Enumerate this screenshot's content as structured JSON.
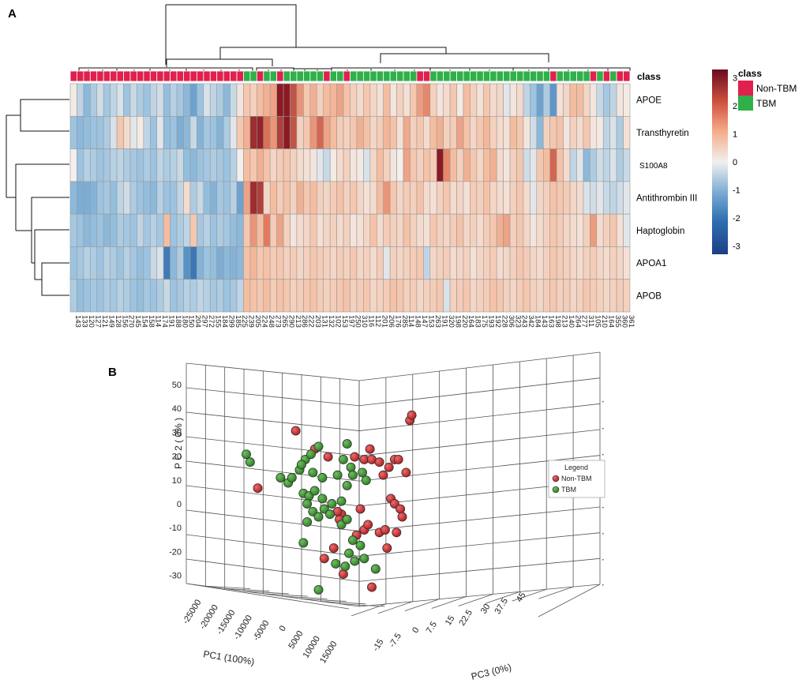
{
  "panels": {
    "a": "A",
    "b": "B"
  },
  "colors": {
    "non_tbm": "#e0204e",
    "tbm": "#2fb04a",
    "scale": [
      "#2e5fa3",
      "#6fa6d0",
      "#c7dcea",
      "#f4eeea",
      "#f5c2a6",
      "#e58468",
      "#8b1a23"
    ],
    "cell_border": "#9a9a9a",
    "pca_red": "#d8353a",
    "pca_green": "#3d9a34",
    "grid": "#555555"
  },
  "chart_data": [
    {
      "type": "heatmap",
      "title": "",
      "annotation_label": "class",
      "legend": {
        "title": "class",
        "entries": [
          "Non-TBM",
          "TBM"
        ],
        "colorbar_ticks": [
          3,
          2,
          1,
          0,
          -1,
          -2,
          -3
        ],
        "colorbar_range": [
          -3.3,
          3.3
        ]
      },
      "rows": [
        "APOE",
        "Transthyretin",
        "S100A8",
        "Antithrombin III",
        "Haptoglobin",
        "APOA1",
        "APOB"
      ],
      "columns": [
        "143",
        "133",
        "120",
        "127",
        "121",
        "149",
        "128",
        "156",
        "270",
        "145",
        "154",
        "158",
        "114",
        "174",
        "191",
        "188",
        "180",
        "150",
        "204",
        "297",
        "272",
        "155",
        "184",
        "299",
        "185",
        "225",
        "239",
        "205",
        "224",
        "248",
        "273",
        "265",
        "290",
        "213",
        "286",
        "222",
        "203",
        "131",
        "132",
        "102",
        "153",
        "197",
        "250",
        "310",
        "116",
        "112",
        "201",
        "206",
        "176",
        "285",
        "114",
        "148",
        "147",
        "153",
        "263",
        "191",
        "320",
        "198",
        "220",
        "164",
        "183",
        "175",
        "193",
        "192",
        "228",
        "306",
        "323",
        "243",
        "342",
        "184",
        "143",
        "163",
        "198",
        "213",
        "140",
        "264",
        "277",
        "311",
        "105",
        "210",
        "164",
        "355",
        "360",
        "361"
      ],
      "column_class": [
        "N",
        "N",
        "N",
        "N",
        "N",
        "N",
        "N",
        "N",
        "N",
        "N",
        "N",
        "N",
        "N",
        "N",
        "N",
        "N",
        "N",
        "N",
        "N",
        "N",
        "N",
        "N",
        "N",
        "N",
        "N",
        "N",
        "T",
        "T",
        "N",
        "T",
        "T",
        "N",
        "T",
        "T",
        "T",
        "T",
        "T",
        "T",
        "N",
        "T",
        "T",
        "N",
        "T",
        "T",
        "T",
        "T",
        "T",
        "T",
        "T",
        "T",
        "T",
        "T",
        "N",
        "N",
        "T",
        "T",
        "T",
        "T",
        "T",
        "T",
        "T",
        "T",
        "T",
        "T",
        "T",
        "T",
        "T",
        "T",
        "T",
        "T",
        "T",
        "T",
        "N",
        "T",
        "T",
        "T",
        "T",
        "T",
        "N",
        "T",
        "N",
        "T",
        "N",
        "N"
      ],
      "values": [
        [
          0.1,
          -0.6,
          -1.2,
          -0.8,
          -0.4,
          -0.9,
          -0.6,
          -0.3,
          -1.0,
          -0.5,
          -0.8,
          -1.0,
          -0.6,
          -0.4,
          -1.1,
          -0.7,
          -0.9,
          -1.2,
          -1.6,
          -1.0,
          -0.3,
          -0.6,
          -0.8,
          -1.2,
          -0.5,
          0.2,
          0.8,
          0.6,
          1.0,
          1.2,
          1.4,
          3.0,
          3.2,
          2.4,
          1.6,
          0.8,
          1.2,
          0.6,
          1.0,
          1.1,
          1.4,
          0.9,
          0.6,
          0.4,
          0.8,
          0.5,
          0.3,
          1.0,
          0.2,
          0.6,
          0.3,
          0.8,
          1.5,
          1.8,
          0.6,
          0.2,
          0.4,
          0.8,
          0.1,
          1.0,
          0.6,
          0.3,
          0.8,
          0.4,
          0.5,
          -0.2,
          0.2,
          0.4,
          -0.6,
          -1.0,
          -1.6,
          -0.8,
          -1.8,
          0.3,
          0.5,
          1.0,
          1.0,
          0.5,
          0.2,
          -0.5,
          -0.9,
          -0.6,
          0.2,
          0.1
        ],
        [
          -1.0,
          -1.2,
          -1.1,
          -1.0,
          -1.0,
          -0.8,
          -0.3,
          0.8,
          0.4,
          -0.2,
          0.1,
          -0.6,
          -1.0,
          -0.2,
          -1.1,
          -1.0,
          -1.4,
          -1.2,
          -0.5,
          -1.3,
          -0.9,
          -1.0,
          -1.3,
          -0.8,
          -0.2,
          0.8,
          1.2,
          2.8,
          2.9,
          2.1,
          1.6,
          2.6,
          3.0,
          2.4,
          0.6,
          0.8,
          1.6,
          2.2,
          1.4,
          1.0,
          0.7,
          0.6,
          0.8,
          1.2,
          0.9,
          0.5,
          0.7,
          1.1,
          0.9,
          0.3,
          1.3,
          0.6,
          0.8,
          0.4,
          1.0,
          1.2,
          0.6,
          0.7,
          1.4,
          0.9,
          0.5,
          0.8,
          1.1,
          0.6,
          0.4,
          0.3,
          1.0,
          0.8,
          0.2,
          -0.4,
          -1.2,
          0.6,
          0.8,
          0.9,
          0.2,
          0.6,
          0.4,
          0.8,
          0.2,
          0.1,
          -0.6,
          -0.3,
          -0.8,
          0.3
        ],
        [
          0.0,
          -1.0,
          -0.7,
          -0.8,
          -1.0,
          -0.9,
          -0.7,
          -0.6,
          -0.8,
          -0.9,
          -1.0,
          -0.8,
          -1.0,
          -0.6,
          -0.8,
          -0.7,
          -0.5,
          -1.1,
          -1.2,
          -1.0,
          -0.9,
          -0.8,
          -0.9,
          -1.0,
          -0.7,
          0.0,
          1.0,
          0.8,
          1.2,
          0.9,
          0.5,
          0.7,
          0.8,
          0.6,
          0.4,
          0.3,
          0.2,
          -0.2,
          -0.5,
          0.1,
          0.4,
          0.6,
          0.2,
          0.1,
          -0.3,
          0.5,
          1.0,
          0.6,
          0.2,
          0.0,
          1.4,
          0.8,
          0.6,
          0.9,
          0.7,
          3.0,
          1.8,
          1.0,
          0.6,
          1.2,
          0.8,
          0.5,
          1.0,
          1.2,
          0.4,
          0.2,
          0.6,
          0.8,
          -0.4,
          -0.2,
          0.8,
          1.0,
          2.2,
          0.9,
          0.4,
          -0.6,
          -0.2,
          -1.2,
          -0.8,
          -0.4,
          -0.6,
          -0.3,
          -0.8,
          -0.5
        ],
        [
          -1.2,
          -1.4,
          -1.4,
          -1.3,
          -1.0,
          -0.9,
          -1.1,
          -0.6,
          -0.4,
          -0.8,
          -1.0,
          -1.1,
          -1.2,
          -0.7,
          -1.0,
          -1.0,
          -0.6,
          0.4,
          -0.8,
          -0.5,
          -1.1,
          -1.3,
          -0.9,
          -1.0,
          -0.7,
          -1.6,
          1.4,
          2.8,
          2.6,
          0.5,
          1.0,
          0.7,
          0.9,
          0.6,
          1.2,
          0.8,
          1.0,
          0.6,
          0.5,
          0.7,
          0.9,
          0.6,
          0.8,
          0.5,
          0.3,
          0.4,
          1.0,
          1.6,
          0.8,
          0.5,
          0.7,
          0.6,
          0.9,
          0.4,
          0.3,
          0.6,
          0.8,
          0.4,
          0.5,
          0.3,
          0.7,
          0.6,
          0.9,
          0.5,
          0.4,
          0.3,
          0.6,
          0.8,
          0.4,
          -0.2,
          0.5,
          0.6,
          0.9,
          0.8,
          0.7,
          0.5,
          0.4,
          -0.3,
          -0.4,
          -0.2,
          -0.5,
          -0.6,
          -0.4,
          -0.2
        ],
        [
          -0.9,
          -1.0,
          -1.2,
          -1.1,
          -1.0,
          -1.2,
          -1.1,
          -0.8,
          -0.9,
          -1.0,
          -0.6,
          -0.9,
          -0.7,
          -0.9,
          1.0,
          -1.0,
          -0.8,
          -0.6,
          0.8,
          -0.9,
          -0.7,
          -1.0,
          -0.8,
          -0.9,
          -1.1,
          -1.2,
          0.8,
          1.6,
          1.0,
          2.0,
          0.7,
          1.4,
          0.6,
          0.2,
          0.4,
          0.5,
          0.8,
          0.3,
          0.5,
          0.6,
          0.4,
          0.6,
          0.2,
          0.3,
          0.5,
          0.9,
          0.4,
          0.7,
          0.6,
          0.5,
          0.9,
          0.6,
          0.4,
          0.3,
          0.8,
          0.6,
          0.5,
          0.7,
          0.9,
          0.5,
          0.6,
          0.4,
          0.7,
          0.8,
          1.2,
          1.4,
          0.6,
          0.8,
          0.5,
          0.2,
          0.4,
          0.6,
          0.8,
          0.7,
          0.5,
          0.4,
          0.3,
          0.6,
          1.5,
          0.4,
          0.6,
          0.8,
          0.3,
          -0.2
        ],
        [
          -1.0,
          -0.9,
          -0.7,
          -0.8,
          -1.0,
          -0.7,
          -0.8,
          -1.0,
          -0.7,
          -0.9,
          -1.1,
          -1.0,
          -0.5,
          -0.3,
          -2.4,
          -1.2,
          -0.8,
          -1.9,
          -2.5,
          -1.3,
          -1.0,
          -1.1,
          -1.4,
          -1.2,
          -1.3,
          -1.2,
          0.9,
          1.1,
          0.8,
          0.9,
          0.7,
          0.8,
          0.6,
          0.7,
          0.5,
          0.6,
          0.8,
          0.7,
          0.6,
          0.5,
          0.7,
          0.6,
          0.8,
          0.5,
          0.6,
          0.4,
          0.7,
          -0.2,
          0.6,
          0.5,
          0.6,
          0.7,
          0.8,
          -0.6,
          0.5,
          0.6,
          0.7,
          0.4,
          0.5,
          0.6,
          0.3,
          0.5,
          0.6,
          0.7,
          0.4,
          0.5,
          0.6,
          0.8,
          0.7,
          0.5,
          0.4,
          0.6,
          0.8,
          0.7,
          0.6,
          0.5,
          0.4,
          0.6,
          0.7,
          0.5,
          0.4,
          0.6,
          0.5,
          0.3
        ],
        [
          -0.8,
          -1.1,
          -1.0,
          -0.9,
          -1.0,
          -0.8,
          -0.9,
          -0.7,
          -0.8,
          -1.0,
          -1.1,
          -0.9,
          -1.0,
          -0.8,
          -0.5,
          -1.0,
          -0.9,
          -0.7,
          -0.8,
          -0.6,
          -0.7,
          -0.9,
          -0.8,
          -1.0,
          -0.9,
          -0.6,
          1.0,
          0.9,
          0.8,
          1.0,
          0.7,
          0.9,
          0.8,
          0.6,
          0.7,
          0.8,
          0.9,
          0.7,
          0.6,
          0.7,
          0.8,
          0.9,
          0.6,
          0.7,
          0.8,
          0.5,
          0.6,
          0.7,
          0.9,
          0.8,
          0.6,
          0.7,
          0.5,
          0.6,
          0.7,
          0.8,
          -0.3,
          0.6,
          0.7,
          0.8,
          0.5,
          0.6,
          0.7,
          0.9,
          0.8,
          0.6,
          0.5,
          0.7,
          0.8,
          0.6,
          0.5,
          0.7,
          0.8,
          0.6,
          0.7,
          0.5,
          0.6,
          0.8,
          0.7,
          0.6,
          0.5,
          0.6,
          0.7,
          0.6
        ]
      ]
    },
    {
      "type": "scatter",
      "title": "",
      "legend": {
        "title": "Legend",
        "entries": [
          "Non-TBM",
          "TBM"
        ]
      },
      "axes": {
        "pc1": {
          "label": "PC1 (100%)",
          "ticks": [
            -25000,
            -20000,
            -15000,
            -10000,
            -5000,
            0,
            5000,
            10000,
            15000
          ]
        },
        "pc2": {
          "label": "P C 2 ( 0% )",
          "ticks": [
            50,
            40,
            30,
            20,
            10,
            0,
            -10,
            -20,
            -30
          ]
        },
        "pc3": {
          "label": "PC3 (0%)",
          "ticks": [
            "-15",
            "-7.5",
            "0",
            "7.5",
            "15",
            "22.5",
            "30",
            "37.5",
            "45"
          ]
        }
      },
      "points_note": "projected positions read off the 3-D plot (x in PC1 units, y in PC2 units)",
      "series": [
        {
          "name": "Non-TBM",
          "points": [
            [
              -14000,
              28
            ],
            [
              -24000,
              6
            ],
            [
              -9000,
              21
            ],
            [
              -5500,
              18
            ],
            [
              1500,
              18
            ],
            [
              4000,
              17
            ],
            [
              6000,
              17
            ],
            [
              5500,
              21
            ],
            [
              9000,
              11
            ],
            [
              8000,
              16
            ],
            [
              10500,
              14
            ],
            [
              12000,
              17
            ],
            [
              13000,
              17
            ],
            [
              15000,
              12
            ],
            [
              11000,
              2
            ],
            [
              16000,
              32
            ],
            [
              16500,
              34
            ],
            [
              12000,
              0
            ],
            [
              13500,
              -2
            ],
            [
              14000,
              -5
            ],
            [
              12500,
              -11
            ],
            [
              8000,
              -11
            ],
            [
              4000,
              -10
            ],
            [
              2000,
              -12
            ],
            [
              -2000,
              -4
            ],
            [
              -2500,
              -6
            ],
            [
              3000,
              -2
            ],
            [
              5000,
              -8
            ],
            [
              -1500,
              -27
            ],
            [
              -6500,
              -21
            ],
            [
              -4000,
              -17
            ],
            [
              9500,
              -10
            ],
            [
              10000,
              -17
            ],
            [
              6000,
              -32
            ],
            [
              -3000,
              -3
            ]
          ]
        },
        {
          "name": "TBM",
          "points": [
            [
              -27000,
              19
            ],
            [
              -26000,
              16
            ],
            [
              -18000,
              10
            ],
            [
              -16000,
              8
            ],
            [
              -15000,
              10
            ],
            [
              -13000,
              13
            ],
            [
              -11500,
              17
            ],
            [
              -12500,
              15
            ],
            [
              -10000,
              19
            ],
            [
              -8000,
              22
            ],
            [
              -9500,
              12
            ],
            [
              -7000,
              10
            ],
            [
              -3000,
              11
            ],
            [
              -500,
              23
            ],
            [
              -1500,
              17
            ],
            [
              500,
              14
            ],
            [
              1000,
              11
            ],
            [
              -500,
              7
            ],
            [
              3500,
              12
            ],
            [
              4500,
              9
            ],
            [
              -12000,
              4
            ],
            [
              -10500,
              3
            ],
            [
              -9000,
              5
            ],
            [
              -11000,
              0
            ],
            [
              -7000,
              2
            ],
            [
              -6500,
              -2
            ],
            [
              -5000,
              -4
            ],
            [
              -4500,
              0
            ],
            [
              -2000,
              1
            ],
            [
              -9500,
              -3
            ],
            [
              -8000,
              -5
            ],
            [
              -11000,
              -7
            ],
            [
              -12000,
              -15
            ],
            [
              -2000,
              -8
            ],
            [
              1000,
              -14
            ],
            [
              3000,
              -16
            ],
            [
              0,
              -19
            ],
            [
              1500,
              -22
            ],
            [
              -1000,
              -24
            ],
            [
              -3500,
              -23
            ],
            [
              4000,
              -21
            ],
            [
              7000,
              -25
            ],
            [
              -8000,
              -33
            ],
            [
              -500,
              -6
            ]
          ]
        }
      ]
    }
  ]
}
